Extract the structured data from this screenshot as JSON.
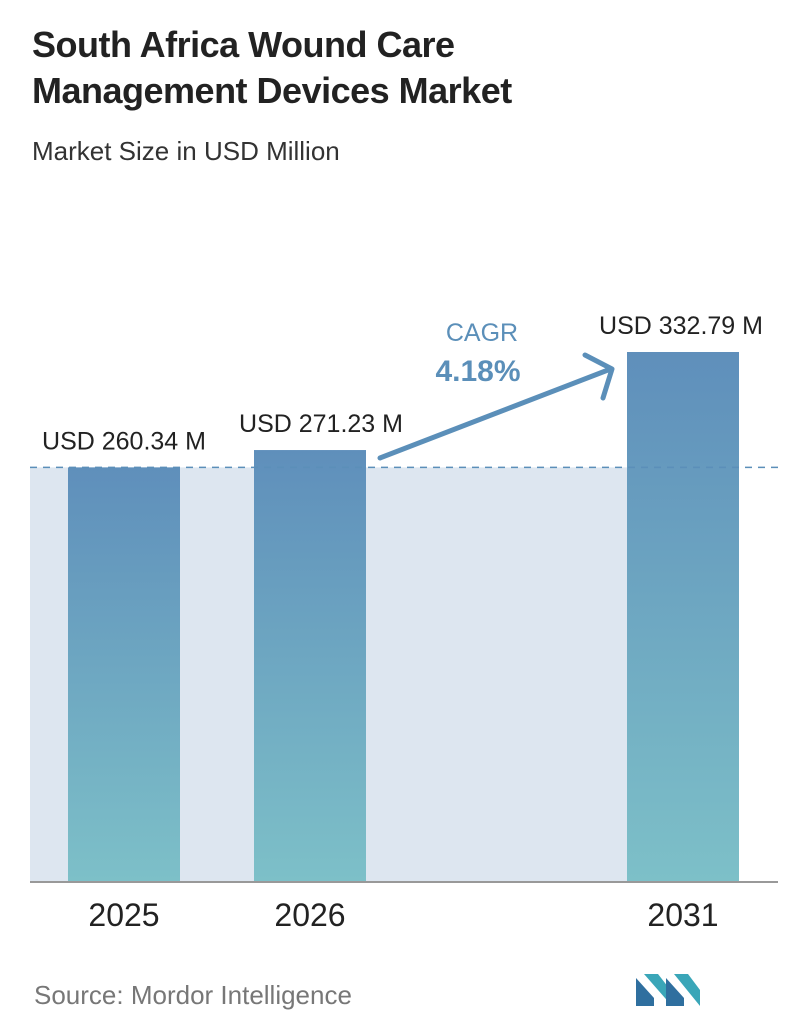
{
  "title_line1": "South Africa Wound Care",
  "title_line2": "Management Devices Market",
  "subtitle": "Market Size in USD Million",
  "source": "Source:  Mordor Intelligence",
  "cagr_label": "CAGR",
  "cagr_value": "4.18%",
  "colors": {
    "bar_top": "#5f8fbb",
    "bar_bottom": "#7dc0c8",
    "band": "#dde6f0",
    "accent": "#5b8fb9",
    "baseline": "#999999"
  },
  "logo_icon": "mordor-intelligence-logo",
  "chart_data": {
    "type": "bar",
    "categories": [
      "2025",
      "2026",
      "2031"
    ],
    "values": [
      260.34,
      271.23,
      332.79
    ],
    "data_labels": [
      "USD 260.34 M",
      "USD 271.23 M",
      "USD 332.79 M"
    ],
    "ylim": [
      0,
      340
    ]
  }
}
